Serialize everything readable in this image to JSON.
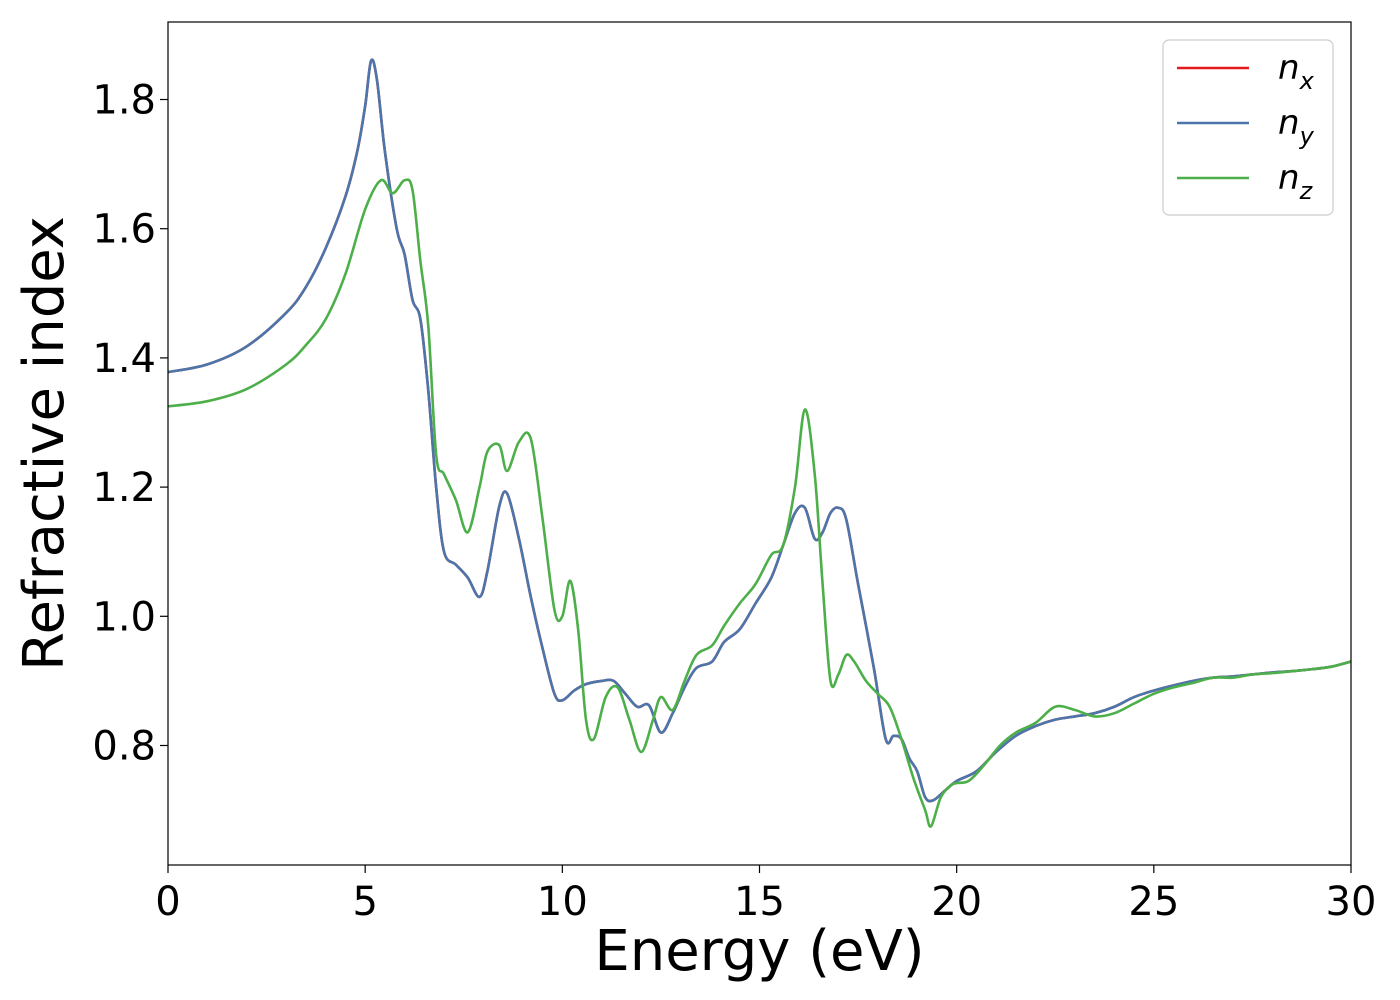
{
  "chart_data": {
    "type": "line",
    "xlabel": "Energy (eV)",
    "ylabel": "Refractive index",
    "xlim": [
      0,
      30
    ],
    "ylim": [
      0.615,
      1.92
    ],
    "xticks": [
      0,
      5,
      10,
      15,
      20,
      25,
      30
    ],
    "xtick_labels": [
      "0",
      "5",
      "10",
      "15",
      "20",
      "25",
      "30"
    ],
    "yticks": [
      0.8,
      1.0,
      1.2,
      1.4,
      1.6,
      1.8
    ],
    "ytick_labels": [
      "0.8",
      "1.0",
      "1.2",
      "1.4",
      "1.6",
      "1.8"
    ],
    "grid": false,
    "legend_position": "top-right",
    "series": [
      {
        "name": "n_x",
        "legend_base": "n",
        "legend_sub": "x",
        "color": "#e41a1c",
        "x": [
          0,
          1,
          2,
          3,
          3.5,
          4,
          4.5,
          4.8,
          5.0,
          5.15,
          5.3,
          5.5,
          5.8,
          6.0,
          6.2,
          6.4,
          6.6,
          6.8,
          7.0,
          7.3,
          7.6,
          7.9,
          8.1,
          8.4,
          8.6,
          8.9,
          9.2,
          9.5,
          9.8,
          10.0,
          10.3,
          10.6,
          11.0,
          11.3,
          11.6,
          11.9,
          12.2,
          12.5,
          12.8,
          13.1,
          13.4,
          13.8,
          14.1,
          14.5,
          14.9,
          15.3,
          15.6,
          15.9,
          16.15,
          16.4,
          16.6,
          16.8,
          17.0,
          17.2,
          17.5,
          17.9,
          18.2,
          18.4,
          18.6,
          18.8,
          19.0,
          19.2,
          19.4,
          19.7,
          20.0,
          20.5,
          21.0,
          21.5,
          22.0,
          22.5,
          23.0,
          23.5,
          24.0,
          24.5,
          25.0,
          25.5,
          26.0,
          26.5,
          27.0,
          27.5,
          28.0,
          28.5,
          29.0,
          29.5,
          30.0
        ],
        "y": [
          1.378,
          1.39,
          1.418,
          1.47,
          1.51,
          1.57,
          1.65,
          1.72,
          1.79,
          1.86,
          1.83,
          1.72,
          1.6,
          1.56,
          1.49,
          1.46,
          1.35,
          1.2,
          1.1,
          1.08,
          1.06,
          1.03,
          1.07,
          1.17,
          1.19,
          1.12,
          1.03,
          0.95,
          0.88,
          0.87,
          0.885,
          0.895,
          0.9,
          0.9,
          0.88,
          0.86,
          0.862,
          0.82,
          0.85,
          0.89,
          0.92,
          0.93,
          0.96,
          0.98,
          1.02,
          1.06,
          1.11,
          1.16,
          1.168,
          1.12,
          1.13,
          1.16,
          1.168,
          1.15,
          1.05,
          0.92,
          0.81,
          0.815,
          0.81,
          0.78,
          0.76,
          0.72,
          0.715,
          0.73,
          0.745,
          0.76,
          0.79,
          0.815,
          0.83,
          0.84,
          0.845,
          0.85,
          0.86,
          0.875,
          0.885,
          0.893,
          0.9,
          0.905,
          0.907,
          0.91,
          0.913,
          0.915,
          0.918,
          0.922,
          0.93
        ]
      },
      {
        "name": "n_y",
        "legend_base": "n",
        "legend_sub": "y",
        "color": "#4a76ab",
        "x": [
          0,
          1,
          2,
          3,
          3.5,
          4,
          4.5,
          4.8,
          5.0,
          5.15,
          5.3,
          5.5,
          5.8,
          6.0,
          6.2,
          6.4,
          6.6,
          6.8,
          7.0,
          7.3,
          7.6,
          7.9,
          8.1,
          8.4,
          8.6,
          8.9,
          9.2,
          9.5,
          9.8,
          10.0,
          10.3,
          10.6,
          11.0,
          11.3,
          11.6,
          11.9,
          12.2,
          12.5,
          12.8,
          13.1,
          13.4,
          13.8,
          14.1,
          14.5,
          14.9,
          15.3,
          15.6,
          15.9,
          16.15,
          16.4,
          16.6,
          16.8,
          17.0,
          17.2,
          17.5,
          17.9,
          18.2,
          18.4,
          18.6,
          18.8,
          19.0,
          19.2,
          19.4,
          19.7,
          20.0,
          20.5,
          21.0,
          21.5,
          22.0,
          22.5,
          23.0,
          23.5,
          24.0,
          24.5,
          25.0,
          25.5,
          26.0,
          26.5,
          27.0,
          27.5,
          28.0,
          28.5,
          29.0,
          29.5,
          30.0
        ],
        "y": [
          1.378,
          1.39,
          1.418,
          1.47,
          1.51,
          1.57,
          1.65,
          1.72,
          1.79,
          1.86,
          1.83,
          1.72,
          1.6,
          1.56,
          1.49,
          1.46,
          1.35,
          1.2,
          1.1,
          1.08,
          1.06,
          1.03,
          1.07,
          1.17,
          1.19,
          1.12,
          1.03,
          0.95,
          0.88,
          0.87,
          0.885,
          0.895,
          0.9,
          0.9,
          0.88,
          0.86,
          0.862,
          0.82,
          0.85,
          0.89,
          0.92,
          0.93,
          0.96,
          0.98,
          1.02,
          1.06,
          1.11,
          1.16,
          1.168,
          1.12,
          1.13,
          1.16,
          1.168,
          1.15,
          1.05,
          0.92,
          0.81,
          0.815,
          0.81,
          0.78,
          0.76,
          0.72,
          0.715,
          0.73,
          0.745,
          0.76,
          0.79,
          0.815,
          0.83,
          0.84,
          0.845,
          0.85,
          0.86,
          0.875,
          0.885,
          0.893,
          0.9,
          0.905,
          0.907,
          0.91,
          0.913,
          0.915,
          0.918,
          0.922,
          0.93
        ]
      },
      {
        "name": "n_z",
        "legend_base": "n",
        "legend_sub": "z",
        "color": "#4daf4a",
        "x": [
          0,
          1,
          2,
          3,
          3.5,
          4,
          4.5,
          5.0,
          5.4,
          5.7,
          6.0,
          6.2,
          6.4,
          6.6,
          6.8,
          7.0,
          7.3,
          7.6,
          7.9,
          8.1,
          8.4,
          8.6,
          8.9,
          9.2,
          9.5,
          9.8,
          10.0,
          10.2,
          10.4,
          10.6,
          10.8,
          11.1,
          11.4,
          11.7,
          12.0,
          12.3,
          12.5,
          12.8,
          13.1,
          13.4,
          13.8,
          14.1,
          14.5,
          14.9,
          15.3,
          15.6,
          15.9,
          16.15,
          16.4,
          16.6,
          16.8,
          17.0,
          17.2,
          17.4,
          17.7,
          18.0,
          18.3,
          18.6,
          18.9,
          19.2,
          19.35,
          19.6,
          19.9,
          20.3,
          20.7,
          21.1,
          21.5,
          22.0,
          22.5,
          23.0,
          23.5,
          24.0,
          24.5,
          25.0,
          25.5,
          26.0,
          26.5,
          27.0,
          27.5,
          28.0,
          28.5,
          29.0,
          29.5,
          30.0
        ],
        "y": [
          1.325,
          1.333,
          1.352,
          1.39,
          1.42,
          1.46,
          1.53,
          1.63,
          1.675,
          1.655,
          1.675,
          1.66,
          1.55,
          1.45,
          1.25,
          1.22,
          1.18,
          1.13,
          1.2,
          1.255,
          1.265,
          1.225,
          1.27,
          1.275,
          1.15,
          1.01,
          1.0,
          1.055,
          0.98,
          0.84,
          0.81,
          0.875,
          0.89,
          0.84,
          0.79,
          0.84,
          0.875,
          0.855,
          0.9,
          0.94,
          0.955,
          0.985,
          1.02,
          1.05,
          1.095,
          1.11,
          1.2,
          1.32,
          1.22,
          1.05,
          0.9,
          0.91,
          0.94,
          0.93,
          0.9,
          0.88,
          0.86,
          0.81,
          0.75,
          0.7,
          0.675,
          0.72,
          0.74,
          0.745,
          0.77,
          0.8,
          0.82,
          0.835,
          0.86,
          0.855,
          0.845,
          0.85,
          0.865,
          0.88,
          0.89,
          0.897,
          0.905,
          0.905,
          0.91,
          0.912,
          0.915,
          0.918,
          0.922,
          0.93
        ]
      }
    ]
  }
}
